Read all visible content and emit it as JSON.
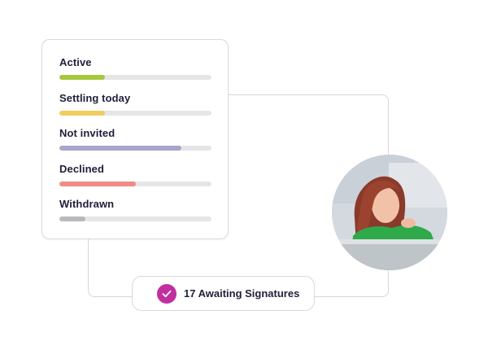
{
  "statuses": [
    {
      "label": "Active",
      "progress": 0.3,
      "color": "#a6c83a"
    },
    {
      "label": "Settling today",
      "progress": 0.3,
      "color": "#f2cc60"
    },
    {
      "label": "Not invited",
      "progress": 0.8,
      "color": "#a7a6cc"
    },
    {
      "label": "Declined",
      "progress": 0.5,
      "color": "#f08b86"
    },
    {
      "label": "Withdrawn",
      "progress": 0.17,
      "color": "#b9b9bd"
    }
  ],
  "awaiting": {
    "label": "17 Awaiting Signatures",
    "icon": "check-icon",
    "icon_color": "#c12fa0"
  },
  "avatar": {
    "icon": "user-photo"
  }
}
